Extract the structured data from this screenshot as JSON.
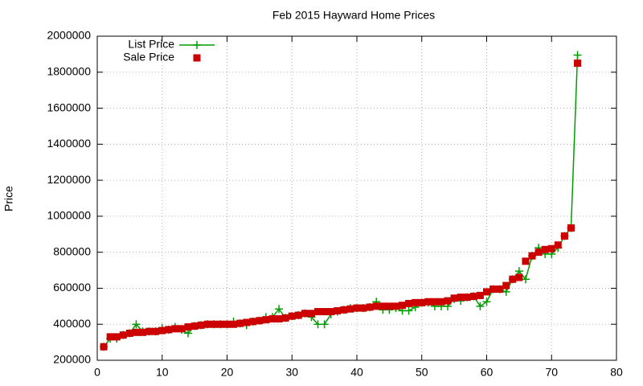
{
  "chart_data": {
    "type": "line",
    "title": "Feb 2015 Hayward Home Prices",
    "y_label": "Price",
    "x": [
      1,
      2,
      3,
      4,
      5,
      6,
      7,
      8,
      9,
      10,
      11,
      12,
      13,
      14,
      15,
      16,
      17,
      18,
      19,
      20,
      21,
      22,
      23,
      24,
      25,
      26,
      27,
      28,
      29,
      30,
      31,
      32,
      33,
      34,
      35,
      36,
      37,
      38,
      39,
      40,
      41,
      42,
      43,
      44,
      45,
      46,
      47,
      48,
      49,
      50,
      51,
      52,
      53,
      54,
      55,
      56,
      57,
      58,
      59,
      60,
      61,
      62,
      63,
      64,
      65,
      66,
      67,
      68,
      69,
      70,
      71,
      72,
      73,
      74
    ],
    "series": [
      {
        "name": "List Price",
        "color": "#009e00",
        "style": "linespoints",
        "values": [
          275000,
          320000,
          320000,
          340000,
          350000,
          400000,
          360000,
          360000,
          360000,
          380000,
          370000,
          385000,
          370000,
          350000,
          390000,
          395000,
          400000,
          400000,
          400000,
          400000,
          415000,
          405000,
          395000,
          415000,
          420000,
          440000,
          440000,
          485000,
          435000,
          445000,
          450000,
          460000,
          440000,
          400000,
          400000,
          455000,
          470000,
          480000,
          490000,
          490000,
          490000,
          495000,
          525000,
          480000,
          480000,
          490000,
          475000,
          475000,
          495000,
          520000,
          520000,
          500000,
          500000,
          500000,
          540000,
          530000,
          550000,
          555000,
          500000,
          525000,
          595000,
          595000,
          580000,
          650000,
          695000,
          650000,
          780000,
          825000,
          790000,
          790000,
          825000,
          890000,
          935000,
          1895000
        ]
      },
      {
        "name": "Sale Price",
        "color": "#cc0000",
        "style": "points",
        "values": [
          275000,
          330000,
          330000,
          340000,
          350000,
          355000,
          355000,
          360000,
          360000,
          365000,
          370000,
          375000,
          375000,
          385000,
          390000,
          395000,
          400000,
          400000,
          400000,
          400000,
          400000,
          405000,
          410000,
          415000,
          420000,
          425000,
          430000,
          430000,
          435000,
          445000,
          450000,
          460000,
          460000,
          470000,
          470000,
          470000,
          475000,
          480000,
          485000,
          490000,
          490000,
          495000,
          500000,
          500000,
          500000,
          500000,
          505000,
          515000,
          520000,
          520000,
          525000,
          525000,
          525000,
          530000,
          545000,
          550000,
          550000,
          555000,
          560000,
          580000,
          595000,
          595000,
          615000,
          650000,
          660000,
          750000,
          780000,
          800000,
          815000,
          820000,
          840000,
          890000,
          935000,
          1850000
        ]
      }
    ],
    "xlim": [
      0,
      80
    ],
    "xticks": [
      0,
      10,
      20,
      30,
      40,
      50,
      60,
      70,
      80
    ],
    "ylim": [
      200000,
      2000000
    ],
    "yticks": [
      200000,
      400000,
      600000,
      800000,
      1000000,
      1200000,
      1400000,
      1600000,
      1800000,
      2000000
    ],
    "grid": true,
    "legend": "top left"
  }
}
